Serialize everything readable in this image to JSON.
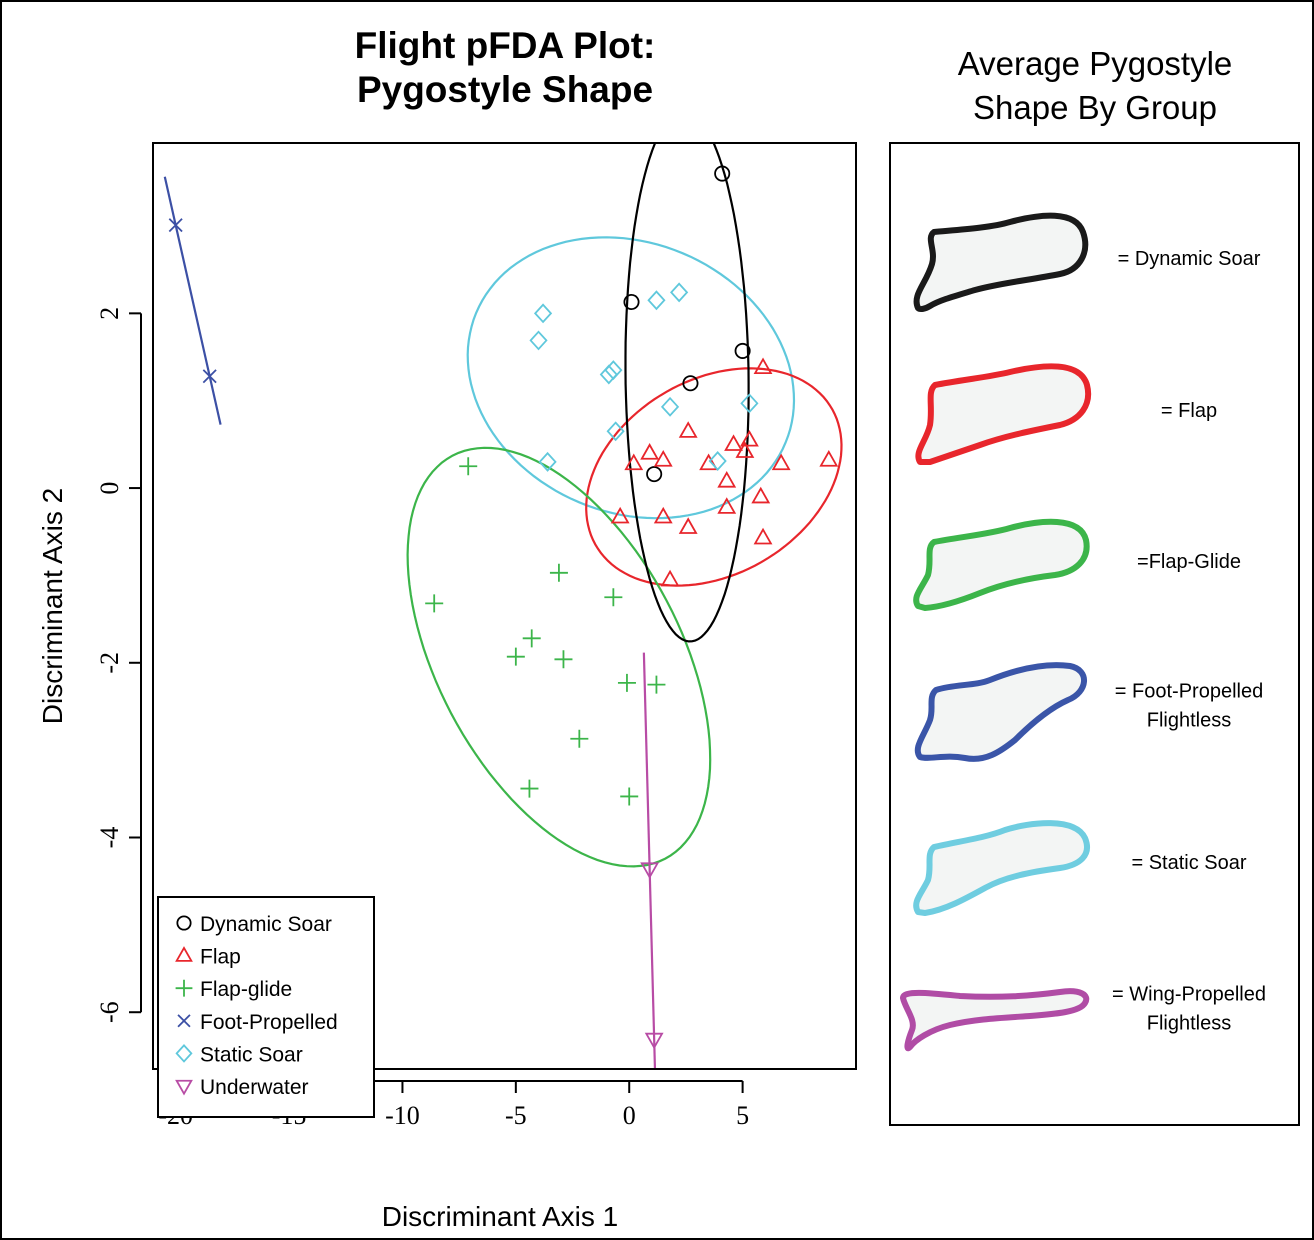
{
  "chart_data": {
    "type": "scatter",
    "title_lines": [
      "Flight pFDA Plot:",
      "Pygostyle Shape"
    ],
    "xlabel": "Discriminant Axis 1",
    "ylabel": "Discriminant Axis 2",
    "xlim": [
      -21,
      10
    ],
    "ylim": [
      -6.65,
      3.95
    ],
    "xticks": [
      -20,
      -15,
      -10,
      -5,
      0,
      5
    ],
    "yticks": [
      2,
      0,
      -2,
      -4,
      -6
    ],
    "legend_position": "bottom-left",
    "series": [
      {
        "name": "Dynamic Soar",
        "marker": "circle",
        "color": "#000000",
        "points": [
          [
            4.1,
            3.6
          ],
          [
            0.1,
            2.13
          ],
          [
            5,
            1.57
          ],
          [
            2.7,
            1.2
          ],
          [
            1.1,
            0.16
          ]
        ],
        "ellipse": {
          "center": [
            2.55,
            1.28
          ],
          "semi_axes": [
            2.7,
            3.05
          ],
          "rotation_deg": 12
        }
      },
      {
        "name": "Flap",
        "marker": "triangle-up",
        "color": "#e8262c",
        "points": [
          [
            5.9,
            1.38
          ],
          [
            2.6,
            0.65
          ],
          [
            4.6,
            0.5
          ],
          [
            5.3,
            0.55
          ],
          [
            5.1,
            0.42
          ],
          [
            0.9,
            0.4
          ],
          [
            0.2,
            0.28
          ],
          [
            1.5,
            0.32
          ],
          [
            3.5,
            0.28
          ],
          [
            6.7,
            0.28
          ],
          [
            8.8,
            0.32
          ],
          [
            4.3,
            0.08
          ],
          [
            5.8,
            -0.1
          ],
          [
            4.3,
            -0.22
          ],
          [
            1.5,
            -0.33
          ],
          [
            -0.4,
            -0.33
          ],
          [
            2.6,
            -0.45
          ],
          [
            5.9,
            -0.57
          ],
          [
            1.8,
            -1.05
          ]
        ]
      },
      {
        "name": "Flap-glide",
        "marker": "plus",
        "color": "#3cb54a",
        "points": [
          [
            -7.1,
            0.25
          ],
          [
            -3.1,
            -0.97
          ],
          [
            -8.6,
            -1.32
          ],
          [
            -0.7,
            -1.25
          ],
          [
            -4.3,
            -1.72
          ],
          [
            -5,
            -1.93
          ],
          [
            -2.9,
            -1.96
          ],
          [
            -0.1,
            -2.23
          ],
          [
            1.2,
            -2.25
          ],
          [
            -2.2,
            -2.87
          ],
          [
            -4.4,
            -3.44
          ],
          [
            0,
            -3.53
          ]
        ]
      },
      {
        "name": "Foot-Propelled",
        "marker": "cross",
        "color": "#3c50a5",
        "points": [
          [
            -20,
            3.01
          ],
          [
            -18.5,
            1.28
          ]
        ]
      },
      {
        "name": "Static Soar",
        "marker": "diamond",
        "color": "#5fc8dc",
        "points": [
          [
            -3.8,
            2
          ],
          [
            -4,
            1.69
          ],
          [
            -0.7,
            1.35
          ],
          [
            -0.9,
            1.3
          ],
          [
            1.2,
            2.15
          ],
          [
            2.2,
            2.24
          ],
          [
            1.8,
            0.93
          ],
          [
            5.3,
            0.97
          ],
          [
            -0.6,
            0.65
          ],
          [
            -3.6,
            0.3
          ],
          [
            3.9,
            0.31
          ]
        ]
      },
      {
        "name": "Underwater",
        "marker": "triangle-down",
        "color": "#b84ca5",
        "points": [
          [
            0.9,
            -4.36
          ],
          [
            1.1,
            -6.31
          ]
        ]
      }
    ]
  },
  "shape_panel": {
    "title_lines": [
      "Average Pygostyle",
      "Shape By Group"
    ],
    "entries": [
      {
        "label_lines": [
          "= Dynamic Soar"
        ],
        "color": "#1a1a1a"
      },
      {
        "label_lines": [
          "= Flap"
        ],
        "color": "#e8262c"
      },
      {
        "label_lines": [
          "=Flap-Glide"
        ],
        "color": "#3cb54a"
      },
      {
        "label_lines": [
          "= Foot-Propelled",
          "Flightless"
        ],
        "color": "#3a55a8"
      },
      {
        "label_lines": [
          "= Static Soar"
        ],
        "color": "#6fcde0"
      },
      {
        "label_lines": [
          "= Wing-Propelled",
          "Flightless"
        ],
        "color": "#b04ca5"
      }
    ]
  }
}
